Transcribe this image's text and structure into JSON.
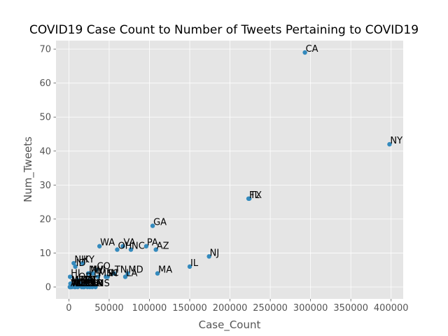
{
  "chart_data": {
    "type": "scatter",
    "title": "COVID19 Case Count to Number of Tweets Pertaining to COVID19",
    "xlabel": "Case_Count",
    "ylabel": "Num_Tweets",
    "xlim": [
      -16000,
      415000
    ],
    "ylim": [
      -3.5,
      72.5
    ],
    "xticks": [
      0,
      50000,
      100000,
      150000,
      200000,
      250000,
      300000,
      350000,
      400000
    ],
    "yticks": [
      0,
      10,
      20,
      30,
      40,
      50,
      60,
      70
    ],
    "grid": true,
    "background": "#e5e5e5",
    "marker_color": "#348abd",
    "points": [
      {
        "label": "CA",
        "x": 293000,
        "y": 69
      },
      {
        "label": "NY",
        "x": 398000,
        "y": 42
      },
      {
        "label": "FL",
        "x": 223000,
        "y": 26
      },
      {
        "label": "TX",
        "x": 224000,
        "y": 26
      },
      {
        "label": "GA",
        "x": 104000,
        "y": 18
      },
      {
        "label": "WA",
        "x": 38000,
        "y": 12
      },
      {
        "label": "VA",
        "x": 67000,
        "y": 12
      },
      {
        "label": "PA",
        "x": 96000,
        "y": 12
      },
      {
        "label": "OH",
        "x": 60000,
        "y": 11
      },
      {
        "label": "NC",
        "x": 77000,
        "y": 11
      },
      {
        "label": "AZ",
        "x": 108000,
        "y": 11
      },
      {
        "label": "NJ",
        "x": 174000,
        "y": 9
      },
      {
        "label": "NH",
        "x": 6000,
        "y": 7
      },
      {
        "label": "KY",
        "x": 17000,
        "y": 7
      },
      {
        "label": "ID",
        "x": 8000,
        "y": 6
      },
      {
        "label": "IL",
        "x": 150000,
        "y": 6
      },
      {
        "label": "CO",
        "x": 34000,
        "y": 5
      },
      {
        "label": "TN",
        "x": 56000,
        "y": 4
      },
      {
        "label": "MA",
        "x": 110000,
        "y": 4
      },
      {
        "label": "MD",
        "x": 73000,
        "y": 4
      },
      {
        "label": "IN",
        "x": 48000,
        "y": 3
      },
      {
        "label": "LA",
        "x": 70000,
        "y": 3
      },
      {
        "label": "SC",
        "x": 46000,
        "y": 3
      },
      {
        "label": "NV",
        "x": 26000,
        "y": 4
      },
      {
        "label": "MI",
        "x": 24000,
        "y": 4
      },
      {
        "label": "WI",
        "x": 30000,
        "y": 4
      },
      {
        "label": "MN",
        "x": 36000,
        "y": 3
      },
      {
        "label": "HI",
        "x": 1500,
        "y": 3
      },
      {
        "label": "OR",
        "x": 11000,
        "y": 2
      },
      {
        "label": "UT",
        "x": 25000,
        "y": 2
      },
      {
        "label": "NM",
        "x": 14000,
        "y": 1
      },
      {
        "label": "CT",
        "x": 20000,
        "y": 1
      },
      {
        "label": "RI",
        "x": 18000,
        "y": 1
      },
      {
        "label": "AL",
        "x": 21000,
        "y": 1
      },
      {
        "label": "MO",
        "x": 23000,
        "y": 0
      },
      {
        "label": "ME",
        "x": 3500,
        "y": 0
      },
      {
        "label": "MT",
        "x": 2000,
        "y": 1
      },
      {
        "label": "WV",
        "x": 3000,
        "y": 1
      },
      {
        "label": "VT",
        "x": 1500,
        "y": 0
      },
      {
        "label": "WY",
        "x": 1600,
        "y": 0
      },
      {
        "label": "DE",
        "x": 11000,
        "y": 0
      },
      {
        "label": "ND",
        "x": 8000,
        "y": 0
      },
      {
        "label": "SD",
        "x": 7000,
        "y": 0
      },
      {
        "label": "NE",
        "x": 18000,
        "y": 0
      },
      {
        "label": "KS",
        "x": 16000,
        "y": 0
      },
      {
        "label": "IA",
        "x": 29000,
        "y": 0
      },
      {
        "label": "AR",
        "x": 26000,
        "y": 0
      },
      {
        "label": "MS",
        "x": 33000,
        "y": 0
      },
      {
        "label": "OK",
        "x": 19000,
        "y": 0
      },
      {
        "label": "AK",
        "x": 1200,
        "y": 0
      }
    ]
  }
}
